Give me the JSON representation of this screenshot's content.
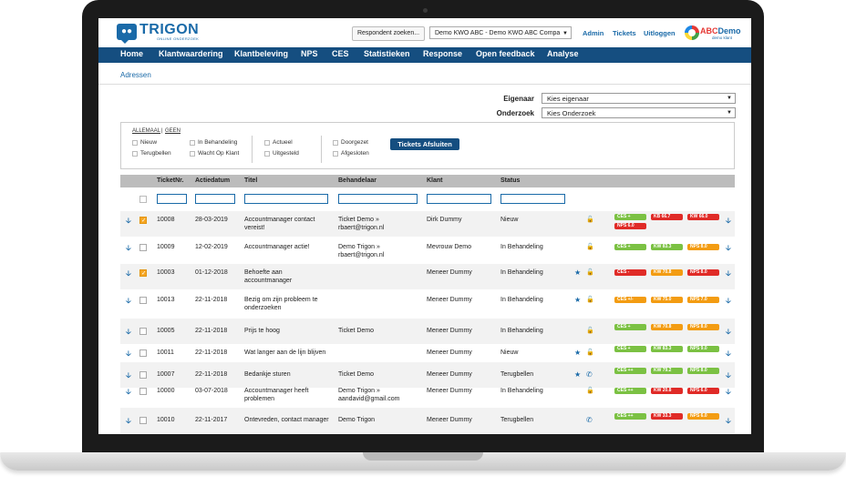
{
  "logo": {
    "name": "TRIGON",
    "tagline": "ONLINE ONDERZOEK"
  },
  "header": {
    "respondent_button": "Respondent zoeken...",
    "project_select": "Demo KWO ABC - Demo KWO ABC Compa",
    "links": [
      "Admin",
      "Tickets",
      "Uitloggen"
    ],
    "client_logo": {
      "part1": "ABC",
      "part2": "Demo",
      "sub": "demo klant"
    }
  },
  "nav": [
    "Home",
    "Klantwaardering",
    "Klantbeleving",
    "NPS",
    "CES",
    "Statistieken",
    "Response",
    "Open feedback",
    "Analyse"
  ],
  "breadcrumb": "Adressen",
  "filters": {
    "owner_label": "Eigenaar",
    "owner_value": "Kies eigenaar",
    "research_label": "Onderzoek",
    "research_value": "Kies Onderzoek"
  },
  "status_filter": {
    "all_label": "ALLEMAAL",
    "none_label": "GEEN",
    "col1": [
      "Nieuw",
      "Terugbellen"
    ],
    "col2": [
      "In Behandeling",
      "Wacht Op Klant"
    ],
    "col3": [
      "Actueel",
      "Uitgesteld"
    ],
    "col4": [
      "Doorgezet",
      "Afgesloten"
    ],
    "close_button": "Tickets Afsluiten"
  },
  "columns": [
    "TicketNr.",
    "Actiedatum",
    "Titel",
    "Behandelaar",
    "Klant",
    "Status"
  ],
  "rows": [
    {
      "checked": true,
      "nr": "10008",
      "date": "28-03-2019",
      "title": [
        "Accountmanager contact",
        "vereist!"
      ],
      "handler": [
        "Ticket Demo »",
        "rbaert@trigon.nl"
      ],
      "client": "Dirk Dummy",
      "status": "Nieuw",
      "star": false,
      "icon": "lock",
      "badges": [
        [
          "CES +",
          "green"
        ],
        [
          "KB 66.7",
          "red"
        ],
        [
          "KW 66.0",
          "red"
        ],
        [
          "NPS 6.0",
          "red"
        ]
      ]
    },
    {
      "checked": false,
      "nr": "10009",
      "date": "12-02-2019",
      "title": [
        "Accountmanager actie!"
      ],
      "handler": [
        "Demo Trigon »",
        "rbaert@trigon.nl"
      ],
      "client": "Mevrouw Demo",
      "status": "In Behandeling",
      "star": false,
      "icon": "lock",
      "badges": [
        [
          "CES +",
          "green"
        ],
        [
          "KW 83.3",
          "green"
        ],
        [
          "NPS 8.0",
          "orange"
        ]
      ]
    },
    {
      "checked": true,
      "nr": "10003",
      "date": "01-12-2018",
      "title": [
        "Behoefte aan",
        "accountmanager"
      ],
      "handler": [],
      "client": "Meneer Dummy",
      "status": "In Behandeling",
      "star": true,
      "icon": "lock",
      "badges": [
        [
          "CES -",
          "red"
        ],
        [
          "KW 70.8",
          "orange"
        ],
        [
          "NPS 8.0",
          "red"
        ]
      ]
    },
    {
      "checked": false,
      "nr": "10013",
      "date": "22-11-2018",
      "title": [
        "Bezig om zijn probleem te",
        "onderzoeken"
      ],
      "handler": [],
      "client": "Meneer Dummy",
      "status": "In Behandeling",
      "star": true,
      "icon": "lock",
      "badges": [
        [
          "CES +/-",
          "orange"
        ],
        [
          "KW 75.0",
          "orange"
        ],
        [
          "NPS 7.0",
          "orange"
        ]
      ]
    },
    {
      "checked": false,
      "nr": "10005",
      "date": "22-11-2018",
      "title": [
        "Prijs te hoog"
      ],
      "handler": [
        "Ticket Demo"
      ],
      "client": "Meneer Dummy",
      "status": "In Behandeling",
      "star": false,
      "icon": "lock",
      "badges": [
        [
          "CES +",
          "green"
        ],
        [
          "KW 70.8",
          "orange"
        ],
        [
          "NPS 8.0",
          "orange"
        ]
      ]
    },
    {
      "checked": false,
      "nr": "10011",
      "date": "22-11-2018",
      "title": [
        "Wat langer aan de lijn blijven"
      ],
      "handler": [],
      "client": "Meneer Dummy",
      "status": "Nieuw",
      "star": true,
      "icon": "lock",
      "badges": [
        [
          "CES +",
          "green"
        ],
        [
          "KW 83.3",
          "green"
        ],
        [
          "NPS 9.0",
          "green"
        ]
      ]
    },
    {
      "checked": false,
      "nr": "10007",
      "date": "22-11-2018",
      "title": [
        "Bedankje sturen"
      ],
      "handler": [
        "Ticket Demo"
      ],
      "client": "Meneer Dummy",
      "status": "Terugbellen",
      "star": true,
      "icon": "phone",
      "badges": [
        [
          "CES ++",
          "green"
        ],
        [
          "KW 79.2",
          "green"
        ],
        [
          "NPS 8.0",
          "green"
        ]
      ]
    },
    {
      "checked": false,
      "nr": "10000",
      "date": "03-07-2018",
      "title": [
        "Accountmanager heeft",
        "problemen"
      ],
      "handler": [
        "Demo Trigon »",
        "aandavid@gmail.com"
      ],
      "client": "Meneer Dummy",
      "status": "In Behandeling",
      "star": false,
      "icon": "lock",
      "badges": [
        [
          "CES ++",
          "green"
        ],
        [
          "KW 20.8",
          "red"
        ],
        [
          "NPS 6.0",
          "red"
        ]
      ]
    },
    {
      "checked": false,
      "nr": "10010",
      "date": "22-11-2017",
      "title": [
        "Ontevreden, contact manager"
      ],
      "handler": [
        "Demo Trigon"
      ],
      "client": "Meneer Dummy",
      "status": "Terugbellen",
      "star": false,
      "icon": "phone",
      "badges": [
        [
          "CES ++",
          "green"
        ],
        [
          "KW 33.3",
          "red"
        ],
        [
          "NPS 6.0",
          "orange"
        ]
      ]
    }
  ]
}
